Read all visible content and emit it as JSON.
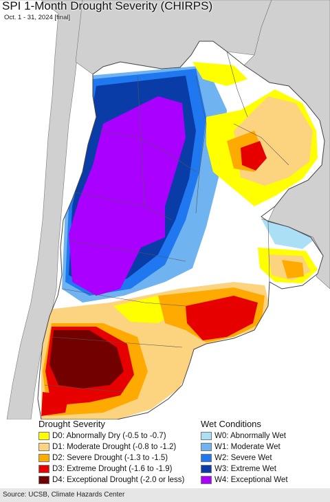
{
  "map": {
    "title": "SPI 1-Month Drought Severity (CHIRPS)",
    "subtitle": "Oct. 1 - 31, 2024 [final]"
  },
  "legend": {
    "drought": {
      "title": "Drought Severity",
      "items": [
        {
          "label": "D0: Abnormally Dry (-0.5 to -0.7)",
          "color": "#ffff00"
        },
        {
          "label": "D1: Moderate Drought (-0.8 to -1.2)",
          "color": "#fcd37f"
        },
        {
          "label": "D2: Severe Drought (-1.3 to -1.5)",
          "color": "#ffaa00"
        },
        {
          "label": "D3: Extreme Drought (-1.6 to -1.9)",
          "color": "#e60000"
        },
        {
          "label": "D4: Exceptional Drought (-2.0 or less)",
          "color": "#730000"
        }
      ]
    },
    "wet": {
      "title": "Wet Conditions",
      "items": [
        {
          "label": "W0: Abnormally Wet",
          "color": "#aadff5"
        },
        {
          "label": "W1: Moderate Wet",
          "color": "#6fb4f0"
        },
        {
          "label": "W2: Severe Wet",
          "color": "#1f78f0"
        },
        {
          "label": "W3: Extreme Wet",
          "color": "#0a3ca8"
        },
        {
          "label": "W4: Exceptional Wet",
          "color": "#aa00ff"
        }
      ]
    }
  },
  "source": "Source: UCSB, Climate Hazards Center",
  "colors": {
    "ocean": "#ffffff",
    "outside_land": "#d0d0d0",
    "border": "#555555"
  }
}
